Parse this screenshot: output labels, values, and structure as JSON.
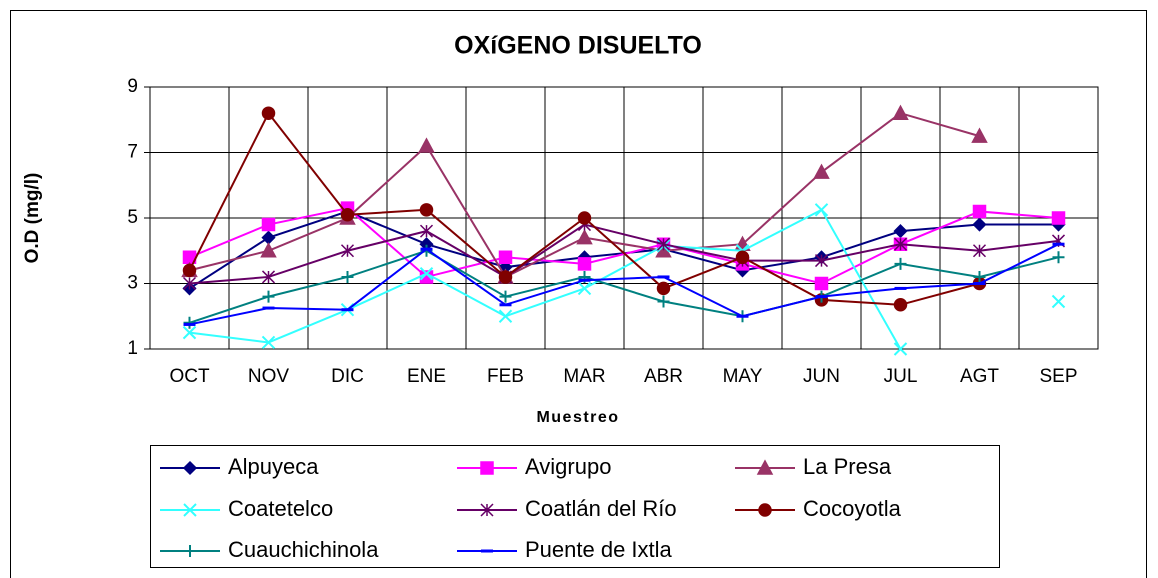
{
  "chart_data": {
    "type": "line",
    "title": "OXíGENO DISUELTO",
    "x_label": "Muestreo",
    "y_label": "O.D (mg/l)",
    "categories": [
      "OCT",
      "NOV",
      "DIC",
      "ENE",
      "FEB",
      "MAR",
      "ABR",
      "MAY",
      "JUN",
      "JUL",
      "AGT",
      "SEP"
    ],
    "ylim": [
      1,
      9
    ],
    "yticks": [
      1,
      3,
      5,
      7,
      9
    ],
    "grid": true,
    "legend": "bottom",
    "series": [
      {
        "name": "Alpuyeca",
        "color": "#000080",
        "marker": "diamond",
        "values": [
          2.85,
          4.4,
          5.2,
          4.2,
          3.5,
          3.8,
          4.05,
          3.4,
          3.8,
          4.6,
          4.8,
          4.8
        ]
      },
      {
        "name": "Avigrupo",
        "color": "#ff00ff",
        "marker": "square",
        "values": [
          3.8,
          4.8,
          5.3,
          3.2,
          3.8,
          3.6,
          4.2,
          3.6,
          3.0,
          4.2,
          5.2,
          5.0
        ]
      },
      {
        "name": "La Presa",
        "color": "#993366",
        "marker": "triangle",
        "values": [
          3.4,
          4.0,
          5.0,
          7.2,
          3.2,
          4.4,
          4.0,
          4.2,
          6.4,
          8.2,
          7.5,
          null
        ]
      },
      {
        "name": "Coatetelco",
        "color": "#33ffff",
        "marker": "x",
        "values": [
          1.5,
          1.2,
          2.2,
          3.3,
          2.0,
          2.85,
          4.15,
          4.0,
          5.25,
          1.0,
          null,
          2.45
        ]
      },
      {
        "name": "Coatlán del Río",
        "color": "#660066",
        "marker": "star",
        "values": [
          3.0,
          3.2,
          4.0,
          4.6,
          3.2,
          4.8,
          4.2,
          3.7,
          3.7,
          4.2,
          4.0,
          4.3
        ]
      },
      {
        "name": "Cocoyotla",
        "color": "#800000",
        "marker": "circle",
        "values": [
          3.4,
          8.2,
          5.1,
          5.25,
          3.2,
          5.0,
          2.85,
          3.8,
          2.5,
          2.35,
          3.0,
          null
        ]
      },
      {
        "name": "Cuauchichinola",
        "color": "#008080",
        "marker": "plus",
        "values": [
          1.8,
          2.6,
          3.2,
          4.0,
          2.6,
          3.2,
          2.45,
          2.0,
          2.6,
          3.6,
          3.2,
          3.8
        ]
      },
      {
        "name": "Puente de Ixtla",
        "color": "#0000ff",
        "marker": "dash",
        "values": [
          1.75,
          2.25,
          2.2,
          4.05,
          2.35,
          3.1,
          3.2,
          2.0,
          2.6,
          2.85,
          3.0,
          4.2
        ]
      }
    ]
  }
}
